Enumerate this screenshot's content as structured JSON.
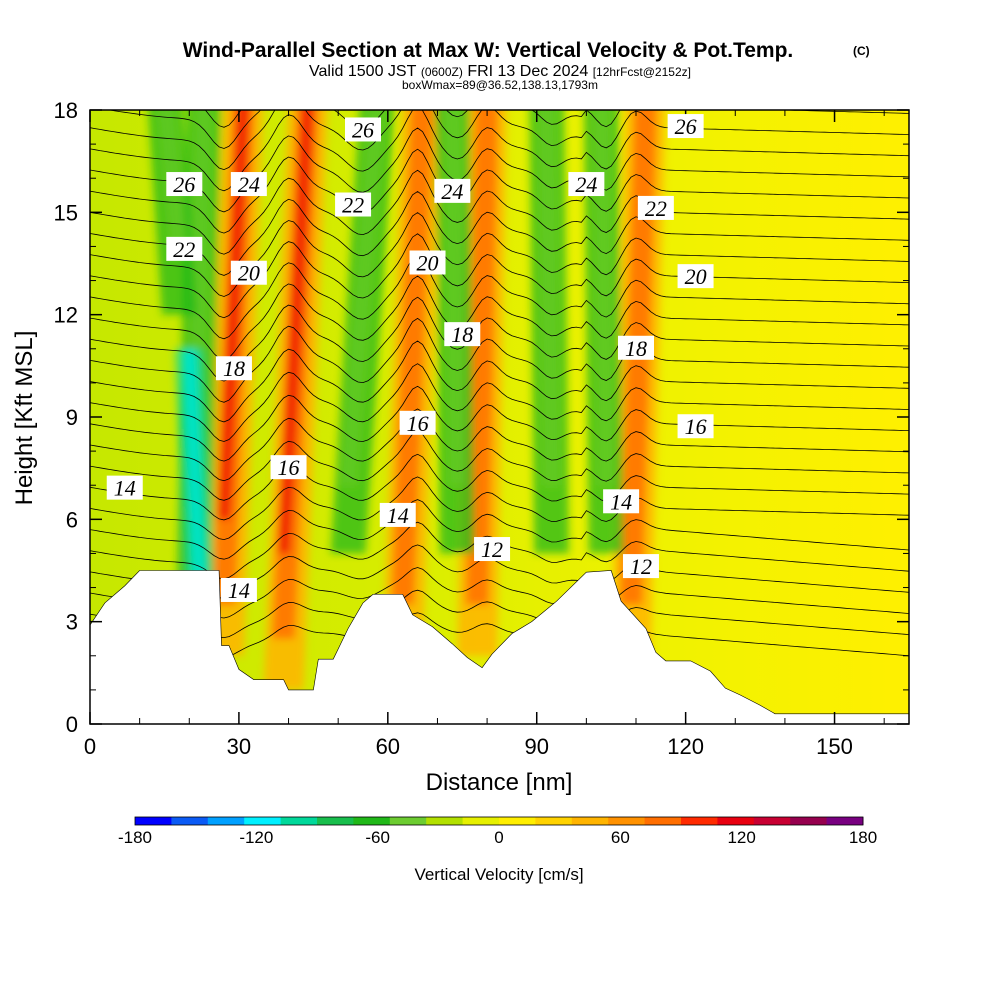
{
  "header": {
    "title": "Wind-Parallel Section at Max W: Vertical Velocity & Pot.Temp.",
    "copyright": "(C)",
    "valid_prefix": "Valid 1500 JST",
    "valid_zulu": "(0600Z)",
    "valid_date": "FRI 13 Dec 2024",
    "forecast": "[12hrFcst@2152z]",
    "box_info": "boxWmax=89@36.52,138.13,1793m"
  },
  "chart_data": {
    "type": "heatmap",
    "xlabel": "Distance [nm]",
    "ylabel": "Height [Kft MSL]",
    "xlim": [
      0,
      165
    ],
    "ylim": [
      0,
      18
    ],
    "x_ticks": [
      "0",
      "30",
      "60",
      "90",
      "120",
      "150"
    ],
    "y_ticks": [
      "0",
      "3",
      "6",
      "9",
      "12",
      "15",
      "18"
    ],
    "colorbar": {
      "label": "Vertical Velocity [cm/s]",
      "range": [
        -180,
        180
      ],
      "tick_labels": [
        "-180",
        "-120",
        "-60",
        "0",
        "60",
        "120",
        "180"
      ],
      "colors": [
        "#0000ff",
        "#0a5af5",
        "#00a0ff",
        "#00f0ff",
        "#00d89a",
        "#18be4c",
        "#20b818",
        "#6ccc30",
        "#b2e000",
        "#e6f000",
        "#ffee00",
        "#ffd200",
        "#ffb400",
        "#ff9100",
        "#ff6e00",
        "#ff2a00",
        "#e80010",
        "#c80032",
        "#96004e",
        "#780080"
      ]
    },
    "terrain_kft": [
      [
        0,
        2.9
      ],
      [
        3,
        3.55
      ],
      [
        7,
        4.05
      ],
      [
        10,
        4.5
      ],
      [
        13,
        4.5
      ],
      [
        23,
        4.5
      ],
      [
        26,
        4.5
      ],
      [
        26.5,
        2.3
      ],
      [
        28,
        2.3
      ],
      [
        30,
        1.6
      ],
      [
        33,
        1.3
      ],
      [
        39,
        1.3
      ],
      [
        40,
        1.0
      ],
      [
        45,
        1.0
      ],
      [
        46,
        1.9
      ],
      [
        49,
        1.9
      ],
      [
        50,
        2.2
      ],
      [
        52,
        2.8
      ],
      [
        55,
        3.55
      ],
      [
        57,
        3.8
      ],
      [
        63,
        3.8
      ],
      [
        65,
        3.2
      ],
      [
        69,
        2.85
      ],
      [
        73,
        2.35
      ],
      [
        76,
        1.95
      ],
      [
        79,
        1.65
      ],
      [
        81,
        2.05
      ],
      [
        85,
        2.65
      ],
      [
        89,
        3.0
      ],
      [
        94,
        3.6
      ],
      [
        100,
        4.45
      ],
      [
        105,
        4.5
      ],
      [
        107,
        3.6
      ],
      [
        112,
        2.8
      ],
      [
        114,
        2.1
      ],
      [
        116,
        1.85
      ],
      [
        121,
        1.85
      ],
      [
        125,
        1.55
      ],
      [
        128,
        1.05
      ],
      [
        131,
        0.85
      ],
      [
        135,
        0.55
      ],
      [
        138,
        0.3
      ],
      [
        150,
        0.3
      ],
      [
        165,
        0.3
      ]
    ],
    "updraft_ridges_nm": [
      [
        27,
        31
      ],
      [
        39,
        44
      ],
      [
        63,
        67
      ],
      [
        78,
        80
      ],
      [
        109,
        112
      ]
    ],
    "downdraft_ridges_nm": [
      [
        21,
        23
      ],
      [
        18,
        15
      ],
      [
        52,
        58
      ],
      [
        74,
        73
      ],
      [
        93,
        92
      ],
      [
        104,
        103
      ]
    ],
    "theta_labels": [
      {
        "text": "26",
        "x": 19,
        "y": 15.8
      },
      {
        "text": "24",
        "x": 32,
        "y": 15.8
      },
      {
        "text": "26",
        "x": 55,
        "y": 17.4
      },
      {
        "text": "24",
        "x": 73,
        "y": 15.6
      },
      {
        "text": "24",
        "x": 100,
        "y": 15.8
      },
      {
        "text": "26",
        "x": 120,
        "y": 17.5
      },
      {
        "text": "22",
        "x": 19,
        "y": 13.9
      },
      {
        "text": "22",
        "x": 53,
        "y": 15.2
      },
      {
        "text": "22",
        "x": 114,
        "y": 15.1
      },
      {
        "text": "20",
        "x": 32,
        "y": 13.2
      },
      {
        "text": "20",
        "x": 68,
        "y": 13.5
      },
      {
        "text": "20",
        "x": 122,
        "y": 13.1
      },
      {
        "text": "18",
        "x": 29,
        "y": 10.4
      },
      {
        "text": "18",
        "x": 75,
        "y": 11.4
      },
      {
        "text": "18",
        "x": 110,
        "y": 11.0
      },
      {
        "text": "16",
        "x": 40,
        "y": 7.5
      },
      {
        "text": "16",
        "x": 66,
        "y": 8.8
      },
      {
        "text": "16",
        "x": 122,
        "y": 8.7
      },
      {
        "text": "14",
        "x": 7,
        "y": 6.9
      },
      {
        "text": "14",
        "x": 62,
        "y": 6.1
      },
      {
        "text": "14",
        "x": 107,
        "y": 6.5
      },
      {
        "text": "14",
        "x": 30,
        "y": 3.9
      },
      {
        "text": "12",
        "x": 81,
        "y": 5.1
      },
      {
        "text": "12",
        "x": 111,
        "y": 4.6
      }
    ]
  }
}
